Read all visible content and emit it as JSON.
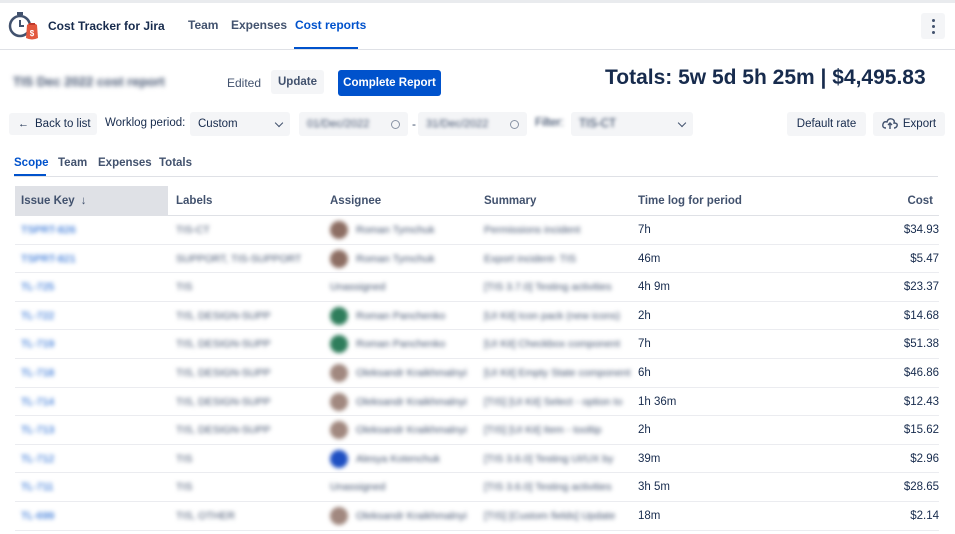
{
  "app": {
    "title": "Cost Tracker for Jira",
    "nav": [
      {
        "label": "Team",
        "active": false
      },
      {
        "label": "Expenses",
        "active": false
      },
      {
        "label": "Cost reports",
        "active": true
      }
    ]
  },
  "report": {
    "title": "TIS Dec 2022 cost report",
    "edited_label": "Edited",
    "update_label": "Update",
    "complete_label": "Complete Report",
    "totals": "Totals: 5w 5d 5h 25m | $4,495.83"
  },
  "controls": {
    "back_label": "Back to list",
    "worklog_label": "Worklog period:",
    "period_value": "Custom",
    "date_from": "01/Dec/2022",
    "date_to": "31/Dec/2022",
    "filter_label": "Filter:",
    "filter_value": "TIS-CT",
    "default_rate_label": "Default rate",
    "export_label": "Export"
  },
  "subtabs": [
    {
      "label": "Scope",
      "active": true
    },
    {
      "label": "Team",
      "active": false
    },
    {
      "label": "Expenses",
      "active": false
    },
    {
      "label": "Totals",
      "active": false
    }
  ],
  "table": {
    "columns": {
      "issue_key": "Issue Key",
      "labels": "Labels",
      "assignee": "Assignee",
      "summary": "Summary",
      "time": "Time log for period",
      "cost": "Cost"
    },
    "rows": [
      {
        "key": "TSPRT-826",
        "labels": "TIS-CT",
        "assignee": "Roman Tymchuk",
        "avatar": "#8d6e63",
        "summary": "Permissions incident",
        "time": "7h",
        "cost": "$34.93"
      },
      {
        "key": "TSPRT-821",
        "labels": "SUPPORT, TIS-SUPPORT",
        "assignee": "Roman Tymchuk",
        "avatar": "#8d6e63",
        "summary": "Export incident- TIS",
        "time": "46m",
        "cost": "$5.47"
      },
      {
        "key": "TL-725",
        "labels": "TIS",
        "assignee": "Unassigned",
        "avatar": "",
        "summary": "[TIS 3.7.0] Testing activities",
        "time": "4h 9m",
        "cost": "$23.37"
      },
      {
        "key": "TL-722",
        "labels": "TIS, DESIGN-SUPP",
        "assignee": "Roman Panchenko",
        "avatar": "#2e7d5b",
        "summary": "[UI Kit] Icon pack (new icons)",
        "time": "2h",
        "cost": "$14.68"
      },
      {
        "key": "TL-719",
        "labels": "TIS, DESIGN-SUPP",
        "assignee": "Roman Panchenko",
        "avatar": "#2e7d5b",
        "summary": "[UI Kit] Checkbox component",
        "time": "7h",
        "cost": "$51.38"
      },
      {
        "key": "TL-718",
        "labels": "TIS, DESIGN-SUPP",
        "assignee": "Oleksandr Kraikhmalnyi",
        "avatar": "#a1887f",
        "summary": "[UI Kit] Empty State component",
        "time": "6h",
        "cost": "$46.86"
      },
      {
        "key": "TL-714",
        "labels": "TIS, DESIGN-SUPP",
        "assignee": "Oleksandr Kraikhmalnyi",
        "avatar": "#a1887f",
        "summary": "[TIS] [UI Kit] Select - option to",
        "time": "1h 36m",
        "cost": "$12.43"
      },
      {
        "key": "TL-713",
        "labels": "TIS, DESIGN-SUPP",
        "assignee": "Oleksandr Kraikhmalnyi",
        "avatar": "#a1887f",
        "summary": "[TIS] [UI Kit] Item - tooltip",
        "time": "2h",
        "cost": "$15.62"
      },
      {
        "key": "TL-712",
        "labels": "TIS",
        "assignee": "Alesya Kotenchuk",
        "avatar": "#1e4fc2",
        "summary": "[TIS 3.6.0] Testing UI/UX by",
        "time": "39m",
        "cost": "$2.96"
      },
      {
        "key": "TL-711",
        "labels": "TIS",
        "assignee": "Unassigned",
        "avatar": "",
        "summary": "[TIS 3.6.0] Testing activities",
        "time": "3h 5m",
        "cost": "$28.65"
      },
      {
        "key": "TL-699",
        "labels": "TIS, OTHER",
        "assignee": "Oleksandr Kraikhmalnyi",
        "avatar": "#a1887f",
        "summary": "[TIS] [Custom fields] Update",
        "time": "18m",
        "cost": "$2.14"
      }
    ]
  },
  "icons": {
    "logo": "stopwatch-money-icon",
    "back": "arrow-left-icon",
    "sort": "arrow-down-icon",
    "export": "cloud-upload-icon",
    "more": "more-vertical-icon"
  }
}
